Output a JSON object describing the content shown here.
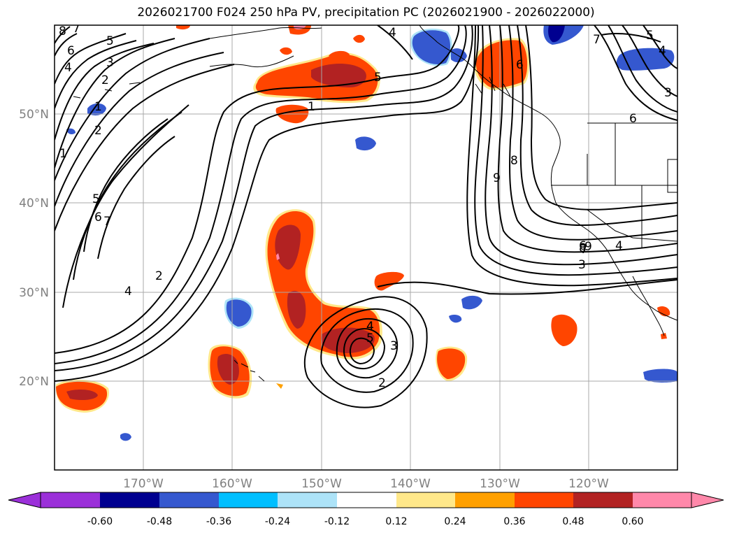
{
  "title": "2026021700 F024 250 hPa PV, precipitation PC (2026021900 - 2026022000)",
  "lat_labels": [
    "50°N",
    "40°N",
    "30°N",
    "20°N"
  ],
  "lon_labels": [
    "170°W",
    "160°W",
    "150°W",
    "140°W",
    "130°W",
    "120°W"
  ],
  "colorbar": {
    "ticks": [
      "-0.60",
      "-0.48",
      "-0.36",
      "-0.24",
      "-0.12",
      "0.12",
      "0.24",
      "0.36",
      "0.48",
      "0.60"
    ],
    "colors": [
      "#9b30d9",
      "#000090",
      "#3558cf",
      "#00bfff",
      "#ade3f8",
      "#ffffff",
      "#ffe88a",
      "#ffa000",
      "#ff4500",
      "#b22222",
      "#ff88aa"
    ]
  },
  "pc_colors": {
    "pos1": "#ffe88a",
    "pos2": "#ffa000",
    "pos3": "#ff4500",
    "pos4": "#b22222",
    "pos5": "#ff88aa",
    "neg1": "#ade3f8",
    "neg2": "#00bfff",
    "neg3": "#3558cf",
    "neg4": "#000090"
  },
  "contour_labels": [
    "8",
    "7",
    "6",
    "5",
    "4",
    "3",
    "2",
    "1",
    "2",
    "1",
    "5",
    "6",
    "7",
    "4",
    "2",
    "4",
    "5",
    "1",
    "4",
    "7",
    "6",
    "8",
    "9",
    "5",
    "4",
    "3",
    "6",
    "7",
    "8",
    "9",
    "6",
    "4",
    "3",
    "4",
    "5",
    "3",
    "2"
  ]
}
